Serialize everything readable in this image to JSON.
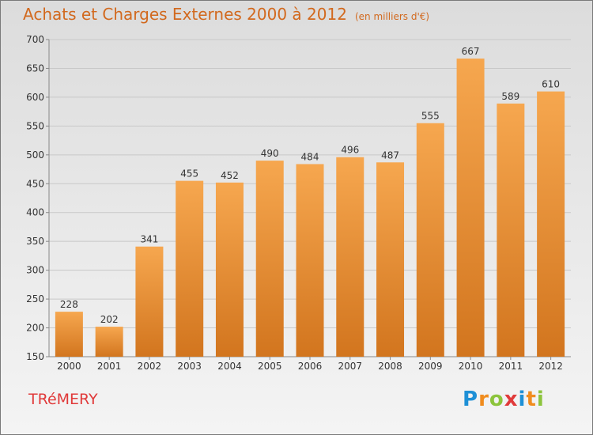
{
  "title": "Achats et Charges Externes 2000 à 2012",
  "subtitle": "(en milliers d'€)",
  "commune": "TRéMERY",
  "logo": {
    "letters": [
      "P",
      "r",
      "o",
      "x",
      "i",
      "t",
      "i"
    ],
    "colors": [
      "#1e90d6",
      "#f08c1e",
      "#8cc43c",
      "#e03a3a",
      "#1e90d6",
      "#f08c1e",
      "#8cc43c"
    ]
  },
  "colors": {
    "bar": "#f09a3e",
    "title": "#d2691e",
    "commune": "#e03a3a"
  },
  "chart_data": {
    "type": "bar",
    "title": "Achats et Charges Externes 2000 à 2012",
    "subtitle": "(en milliers d'€)",
    "categories": [
      "2000",
      "2001",
      "2002",
      "2003",
      "2004",
      "2005",
      "2006",
      "2007",
      "2008",
      "2009",
      "2010",
      "2011",
      "2012"
    ],
    "values": [
      228,
      202,
      341,
      455,
      452,
      490,
      484,
      496,
      487,
      555,
      667,
      589,
      610
    ],
    "ylim": [
      150,
      700
    ],
    "yticks": [
      150,
      200,
      250,
      300,
      350,
      400,
      450,
      500,
      550,
      600,
      650,
      700
    ],
    "grid": true,
    "xlabel": "",
    "ylabel": ""
  }
}
